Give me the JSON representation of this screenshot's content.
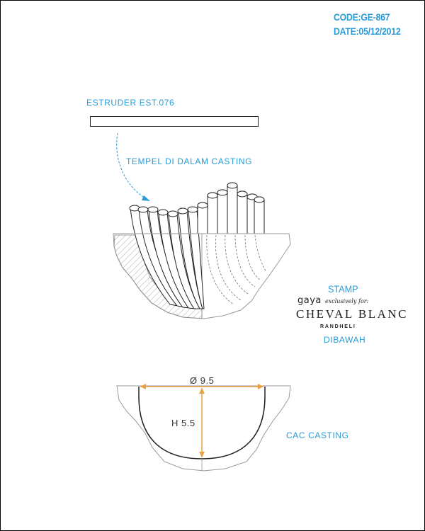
{
  "header": {
    "code": "CODE:GE-867",
    "date": "DATE:05/12/2012"
  },
  "labels": {
    "estruder": "ESTRUDER EST.076",
    "tempel": "TEMPEL DI DALAM CASTING",
    "stamp": "STAMP",
    "dibawah": "DIBAWAH",
    "cac": "CAC CASTING"
  },
  "stamp_brand": {
    "gaya": "gaya",
    "exclusive": "exclusively for:",
    "cheval": "CHEVAL BLANC",
    "randheli": "RANDHELI"
  },
  "dimensions": {
    "diameter": "Ø 9.5",
    "height": "H 5.5"
  },
  "colors": {
    "accent": "#2a9bd6",
    "dimension": "#e8a040",
    "line": "#222222"
  }
}
